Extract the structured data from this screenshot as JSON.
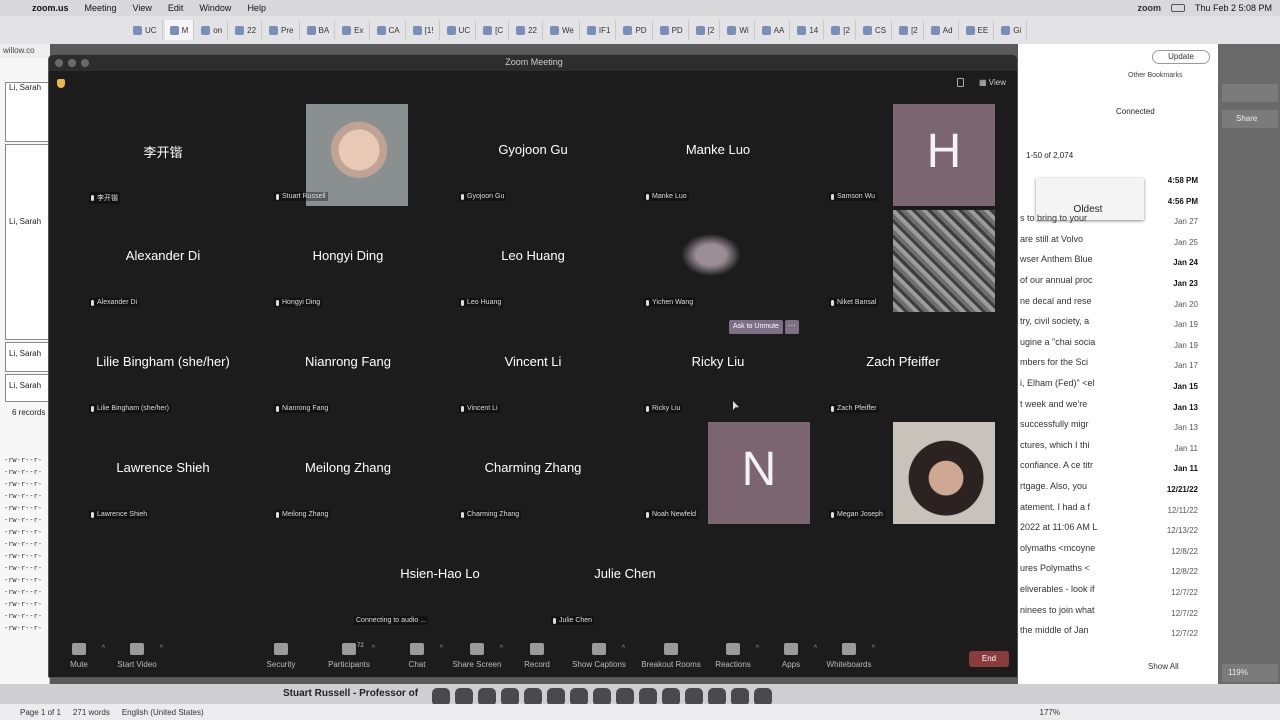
{
  "menubar": {
    "app": "zoom.us",
    "items": [
      "Meeting",
      "View",
      "Edit",
      "Window",
      "Help"
    ],
    "zoom_label": "zoom",
    "datetime": "Thu Feb 2  5:08 PM"
  },
  "browser_tabs": [
    "UC",
    "M",
    "on",
    "22",
    "Pre",
    "BA",
    "Ex",
    "CA",
    "[1!",
    "UC",
    "[C",
    "22",
    "We",
    "IF1",
    "PD",
    "PD",
    "[2",
    "Wi",
    "AA",
    "14",
    "[2",
    "CS",
    "[2",
    "Ad",
    "EE",
    "Gi"
  ],
  "left_doc": {
    "address": "willow.co",
    "cells": [
      "Li, Sarah",
      "Li, Sarah",
      "Li, Sarah",
      "Li, Sarah"
    ],
    "records": "6 records",
    "dash_text": "-rw-r--r-",
    "status_page": "Page 1 of 1",
    "status_words": "271 words",
    "status_lang": "English (United States)",
    "zoom_pct": "177%",
    "bottom_caption": "Stuart Russell - Professor of"
  },
  "right_pane": {
    "update": "Update",
    "bookmarks": "Other Bookmarks",
    "share": "Share",
    "connected": "Connected",
    "pager": "1-50 of 2,074",
    "sort_option": "Oldest",
    "emails": [
      {
        "subject": "",
        "date": "4:58 PM",
        "bold": true
      },
      {
        "subject": "",
        "date": "4:56 PM",
        "bold": true
      },
      {
        "subject": "s to bring to your",
        "date": "Jan 27",
        "bold": false
      },
      {
        "subject": "are still at Volvo",
        "date": "Jan 25",
        "bold": false
      },
      {
        "subject": "wser Anthem Blue",
        "date": "Jan 24",
        "bold": true
      },
      {
        "subject": "of our annual proc",
        "date": "Jan 23",
        "bold": true
      },
      {
        "subject": "ne decal and rese",
        "date": "Jan 20",
        "bold": false
      },
      {
        "subject": "try, civil society, a",
        "date": "Jan 19",
        "bold": false
      },
      {
        "subject": "ugine a \"chai socia",
        "date": "Jan 19",
        "bold": false
      },
      {
        "subject": "mbers for the Sci",
        "date": "Jan 17",
        "bold": false
      },
      {
        "subject": "i, Elham (Fed)\" <el",
        "date": "Jan 15",
        "bold": true
      },
      {
        "subject": "t week and we're",
        "date": "Jan 13",
        "bold": true
      },
      {
        "subject": "successfully migr",
        "date": "Jan 13",
        "bold": false
      },
      {
        "subject": "ctures, which I thi",
        "date": "Jan 11",
        "bold": false
      },
      {
        "subject": "confiance. A ce titr",
        "date": "Jan 11",
        "bold": true
      },
      {
        "subject": "rtgage. Also, you",
        "date": "12/21/22",
        "bold": true
      },
      {
        "subject": "atement. I had a f",
        "date": "12/11/22",
        "bold": false
      },
      {
        "subject": "2022 at 11:06 AM L",
        "date": "12/13/22",
        "bold": false
      },
      {
        "subject": "olymaths <mcoyne",
        "date": "12/8/22",
        "bold": false
      },
      {
        "subject": "ures Polymaths <",
        "date": "12/8/22",
        "bold": false
      },
      {
        "subject": "eliverables - look if",
        "date": "12/7/22",
        "bold": false
      },
      {
        "subject": "ninees to join what",
        "date": "12/7/22",
        "bold": false
      },
      {
        "subject": "the middle of Jan",
        "date": "12/7/22",
        "bold": false
      }
    ],
    "show_all": "Show All",
    "zoom_pct_right": "119%"
  },
  "zoom": {
    "window_title": "Zoom Meeting",
    "view_label": "View",
    "ask_to_unmute": "Ask to Unmute",
    "more_dots": "···",
    "participants": [
      {
        "big": "李开锴",
        "label": "李开锴",
        "pic": ""
      },
      {
        "big": "",
        "label": "Stuart Russell",
        "pic": "stuart"
      },
      {
        "big": "Gyojoon Gu",
        "label": "Gyojoon Gu",
        "pic": ""
      },
      {
        "big": "Manke Luo",
        "label": "Manke Luo",
        "pic": ""
      },
      {
        "big": "",
        "label": "Samson Wu",
        "pic": "initial",
        "letter": "H"
      },
      {
        "big": "Alexander Di",
        "label": "Alexander Di",
        "pic": ""
      },
      {
        "big": "Hongyi Ding",
        "label": "Hongyi Ding",
        "pic": ""
      },
      {
        "big": "Leo Huang",
        "label": "Leo Huang",
        "pic": ""
      },
      {
        "big": "",
        "label": "Yichen Wang",
        "pic": "blur"
      },
      {
        "big": "",
        "label": "Niket Bansal",
        "pic": "tree"
      },
      {
        "big": "Lilie Bingham (she/her)",
        "label": "Lilie Bingham (she/her)",
        "pic": ""
      },
      {
        "big": "Nianrong Fang",
        "label": "Nianrong Fang",
        "pic": ""
      },
      {
        "big": "Vincent Li",
        "label": "Vincent Li",
        "pic": ""
      },
      {
        "big": "Ricky Liu",
        "label": "Ricky Liu",
        "pic": ""
      },
      {
        "big": "Zach Pfeiffer",
        "label": "Zach Pfeiffer",
        "pic": ""
      },
      {
        "big": "Lawrence Shieh",
        "label": "Lawrence Shieh",
        "pic": ""
      },
      {
        "big": "Meilong Zhang",
        "label": "Meilong Zhang",
        "pic": ""
      },
      {
        "big": "Charming Zhang",
        "label": "Charming Zhang",
        "pic": ""
      },
      {
        "big": "",
        "label": "Noah Newfeld",
        "pic": "initial",
        "letter": "N"
      },
      {
        "big": "",
        "label": "Megan Joseph",
        "pic": "megan"
      },
      {
        "big": "Hsien-Hao Lo",
        "label": "Connecting to audio ...",
        "pic": ""
      },
      {
        "big": "Julie Chen",
        "label": "Julie Chen",
        "pic": ""
      }
    ],
    "toolbar": [
      {
        "label": "Mute",
        "caret": true
      },
      {
        "label": "Start Video",
        "caret": true
      },
      {
        "label": "Security",
        "caret": false
      },
      {
        "label": "Participants",
        "caret": true,
        "count": "72"
      },
      {
        "label": "Chat",
        "caret": true
      },
      {
        "label": "Share Screen",
        "caret": true
      },
      {
        "label": "Record",
        "caret": false
      },
      {
        "label": "Show Captions",
        "caret": true
      },
      {
        "label": "Breakout Rooms",
        "caret": false
      },
      {
        "label": "Reactions",
        "caret": true
      },
      {
        "label": "Apps",
        "caret": true
      },
      {
        "label": "Whiteboards",
        "caret": true
      }
    ],
    "end_label": "End"
  }
}
